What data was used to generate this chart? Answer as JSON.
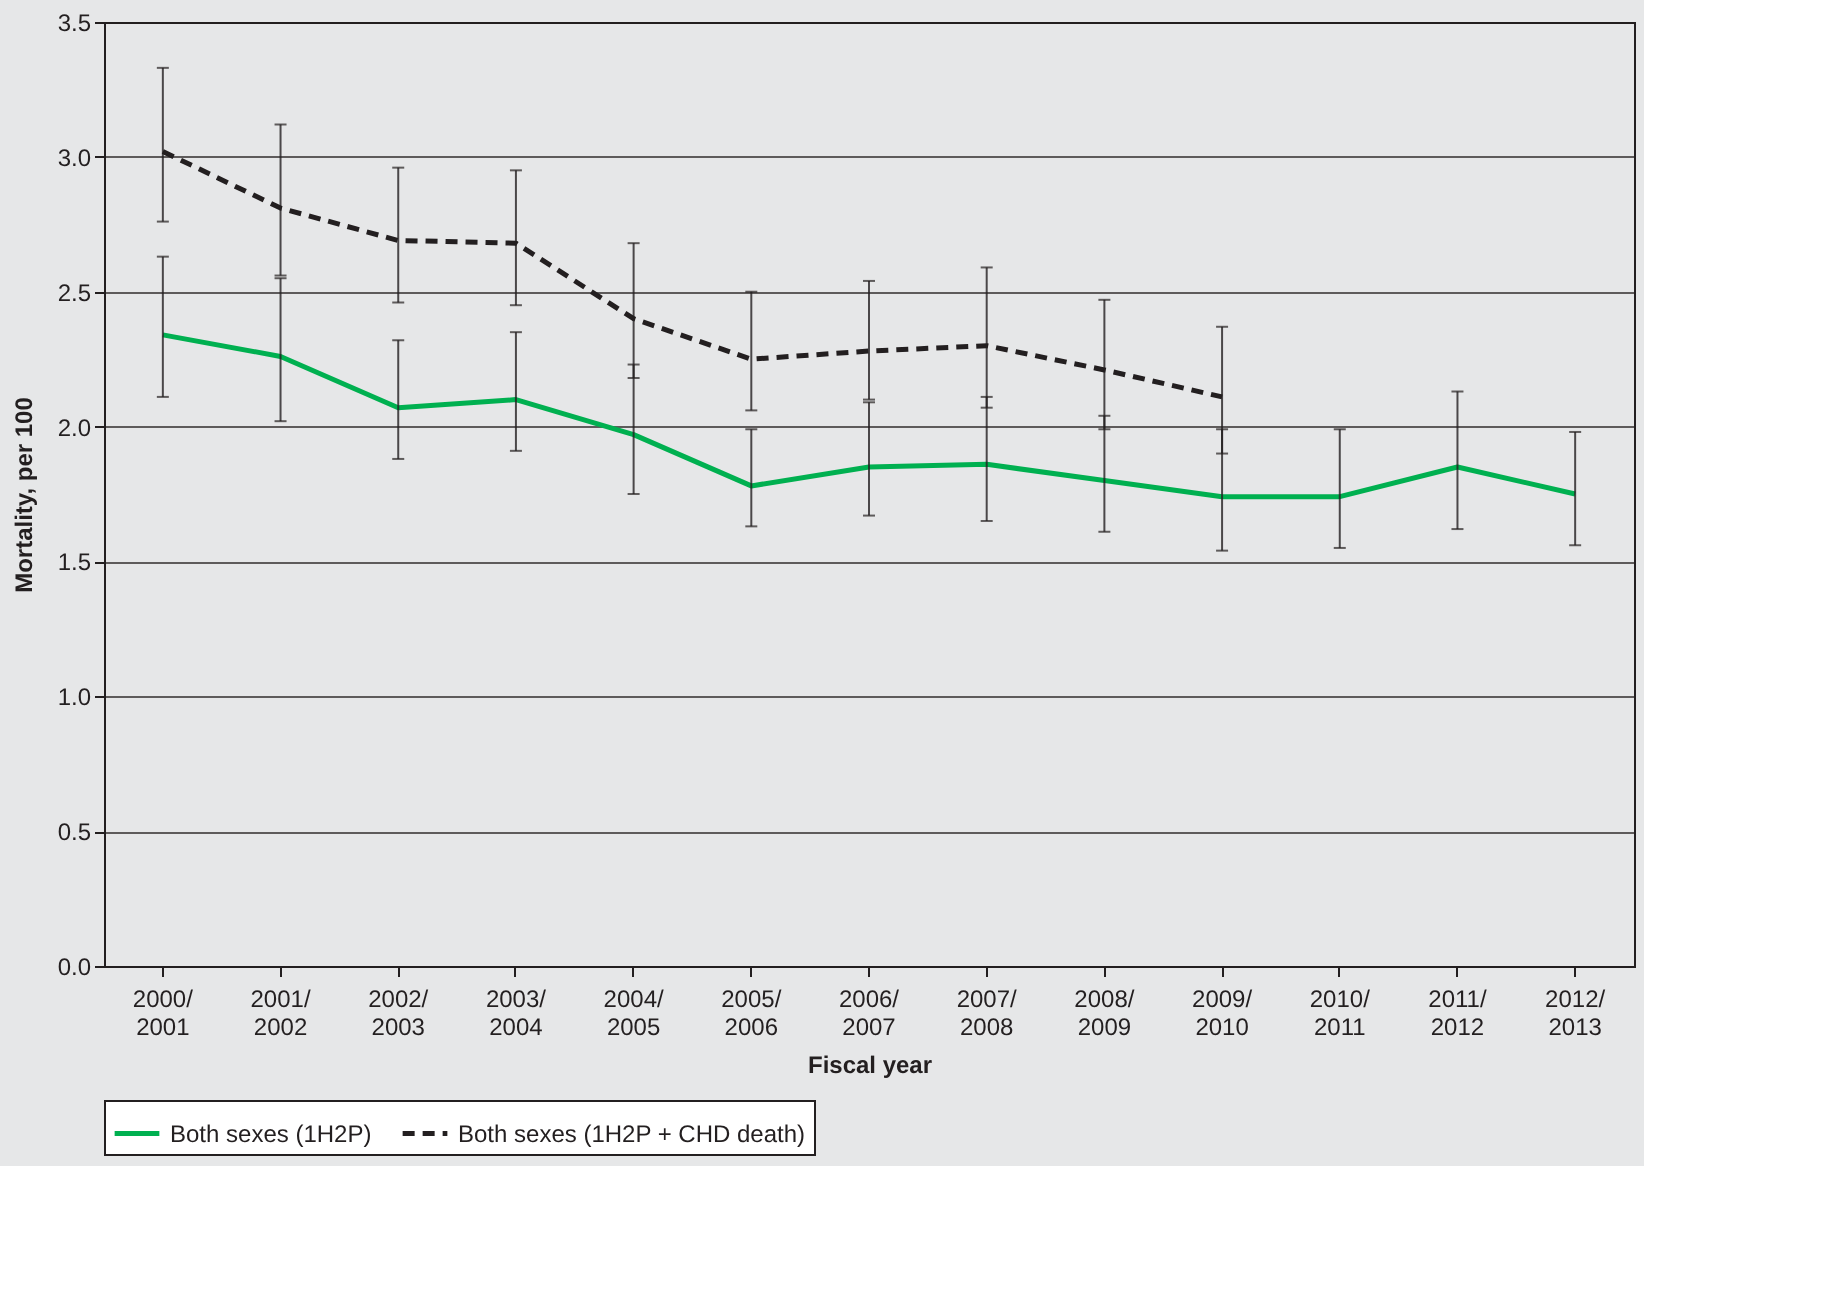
{
  "chart_data": {
    "type": "line",
    "xlabel": "Fiscal year",
    "ylabel": "Mortality, per 100",
    "categories": [
      "2000/2001",
      "2001/2002",
      "2002/2003",
      "2003/2004",
      "2004/2005",
      "2005/2006",
      "2006/2007",
      "2007/2008",
      "2008/2009",
      "2009/2010",
      "2010/2011",
      "2011/2012",
      "2012/2013"
    ],
    "series": [
      {
        "name": "Both sexes (1H2P)",
        "color": "#00b050",
        "line_style": "solid",
        "values": [
          2.34,
          2.26,
          2.07,
          2.1,
          1.97,
          1.78,
          1.85,
          1.86,
          1.8,
          1.74,
          1.74,
          1.85,
          1.75
        ],
        "errors": [
          [
            2.11,
            2.63
          ],
          [
            2.02,
            2.55
          ],
          [
            1.88,
            2.32
          ],
          [
            1.91,
            2.35
          ],
          [
            1.75,
            2.23
          ],
          [
            1.63,
            1.99
          ],
          [
            1.67,
            2.09
          ],
          [
            1.65,
            2.11
          ],
          [
            1.61,
            2.04
          ],
          [
            1.54,
            1.99
          ],
          [
            1.55,
            1.99
          ],
          [
            1.62,
            2.13
          ],
          [
            1.56,
            1.98
          ]
        ]
      },
      {
        "name": "Both sexes (1H2P + CHD death)",
        "color": "#231f20",
        "line_style": "dashed",
        "values": [
          3.02,
          2.81,
          2.69,
          2.68,
          2.4,
          2.25,
          2.28,
          2.3,
          2.21,
          2.11,
          null,
          null,
          null
        ],
        "errors": [
          [
            2.76,
            3.33
          ],
          [
            2.56,
            3.12
          ],
          [
            2.46,
            2.96
          ],
          [
            2.45,
            2.95
          ],
          [
            2.18,
            2.68
          ],
          [
            2.06,
            2.5
          ],
          [
            2.1,
            2.54
          ],
          [
            2.07,
            2.59
          ],
          [
            1.99,
            2.47
          ],
          [
            1.9,
            2.37
          ],
          null,
          null,
          null
        ]
      }
    ],
    "ylim": [
      0,
      3.5
    ],
    "yticks": [
      {
        "value": 0,
        "label": "0.0"
      },
      {
        "value": 0.5,
        "label": "0.5"
      },
      {
        "value": 1,
        "label": "1.0"
      },
      {
        "value": 1.5,
        "label": "1.5"
      },
      {
        "value": 2,
        "label": "2.0"
      },
      {
        "value": 2.5,
        "label": "2.5"
      },
      {
        "value": 3,
        "label": "3.0"
      },
      {
        "value": 3.5,
        "label": "3.5"
      }
    ],
    "grid": "y",
    "legend": "bottom",
    "marker": "none"
  }
}
